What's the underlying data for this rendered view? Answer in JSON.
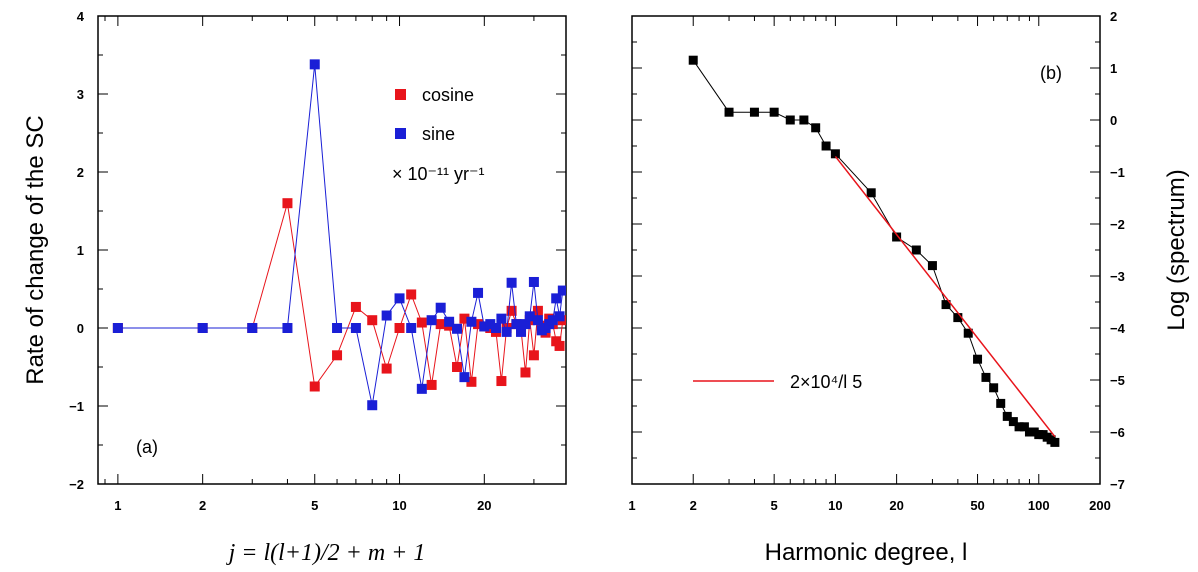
{
  "chart_data": [
    {
      "type": "line",
      "panel_label": "(a)",
      "ylabel": "Rate of change of the SC",
      "xlabel": "j = l(l+1)/2 + m + 1",
      "xscale": "log",
      "xlim": [
        0.85,
        39
      ],
      "ylim": [
        -2,
        4
      ],
      "xticks": [
        1,
        2,
        5,
        10,
        20
      ],
      "yticks": [
        -2,
        -1,
        0,
        1,
        2,
        3,
        4
      ],
      "xtick_labels": [
        "1",
        "2",
        "5",
        "10",
        "20"
      ],
      "ytick_labels": [
        "−2",
        "−1",
        "0",
        "1",
        "2",
        "3",
        "4"
      ],
      "legend": {
        "placement": "top-right",
        "unit_text": "× 10⁻¹¹ yr⁻¹"
      },
      "series": [
        {
          "name": "cosine",
          "color": "#e8141b",
          "x": [
            1,
            2,
            3,
            4,
            5,
            6,
            7,
            8,
            9,
            10,
            11,
            12,
            13,
            14,
            15,
            16,
            17,
            18,
            19,
            20,
            21,
            22,
            23,
            24,
            25,
            26,
            27,
            28,
            29,
            30,
            31,
            32,
            33,
            34,
            35,
            36,
            37,
            38
          ],
          "y": [
            0,
            0,
            0,
            1.6,
            -0.75,
            -0.35,
            0.27,
            0.1,
            -0.52,
            0.0,
            0.43,
            0.07,
            -0.73,
            0.05,
            0.03,
            -0.5,
            0.12,
            -0.69,
            0.05,
            0.02,
            0.0,
            -0.05,
            -0.68,
            0.0,
            0.22,
            0.05,
            -0.02,
            -0.57,
            0.1,
            -0.35,
            0.22,
            0.03,
            -0.06,
            0.12,
            0.05,
            -0.17,
            -0.23,
            0.1
          ]
        },
        {
          "name": "sine",
          "color": "#1a1fd6",
          "x": [
            1,
            2,
            3,
            4,
            5,
            6,
            7,
            8,
            9,
            10,
            11,
            12,
            13,
            14,
            15,
            16,
            17,
            18,
            19,
            20,
            21,
            22,
            23,
            24,
            25,
            26,
            27,
            28,
            29,
            30,
            31,
            32,
            33,
            34,
            35,
            36,
            37,
            38
          ],
          "y": [
            0,
            0,
            0,
            0,
            3.38,
            0,
            0,
            -0.99,
            0.16,
            0.38,
            0,
            -0.78,
            0.1,
            0.26,
            0.08,
            -0.01,
            -0.63,
            0.08,
            0.45,
            0.02,
            0.05,
            0.0,
            0.12,
            -0.05,
            0.58,
            0.05,
            -0.05,
            0.05,
            0.15,
            0.59,
            0.1,
            -0.03,
            0.0,
            0.05,
            0.1,
            0.38,
            0.15,
            0.48
          ]
        }
      ]
    },
    {
      "type": "line",
      "panel_label": "(b)",
      "ylabel": "Log (spectrum)",
      "xlabel": "Harmonic degree, l",
      "xscale": "log",
      "xlim": [
        1,
        200
      ],
      "ylim": [
        -7,
        2
      ],
      "xticks": [
        1,
        2,
        5,
        10,
        20,
        50,
        100,
        200
      ],
      "yticks": [
        -7,
        -6,
        -5,
        -4,
        -3,
        -2,
        -1,
        0,
        1,
        2
      ],
      "xtick_labels": [
        "1",
        "2",
        "5",
        "10",
        "20",
        "50",
        "100",
        "200"
      ],
      "ytick_labels": [
        "−7",
        "−6",
        "−5",
        "−4",
        "−3",
        "−2",
        "−1",
        "0",
        "1",
        "2"
      ],
      "legend": {
        "placement": "bottom-left",
        "fit_label": "2×10⁴/l 5"
      },
      "series": [
        {
          "name": "",
          "color": "#000000",
          "x": [
            2,
            3,
            4,
            5,
            6,
            7,
            8,
            9,
            10,
            15,
            20,
            25,
            30,
            35,
            40,
            45,
            50,
            55,
            60,
            65,
            70,
            75,
            80,
            85,
            90,
            95,
            100,
            105,
            110,
            115,
            120
          ],
          "y": [
            1.15,
            0.15,
            0.15,
            0.15,
            0.0,
            0.0,
            -0.15,
            -0.5,
            -0.65,
            -1.4,
            -2.25,
            -2.5,
            -2.8,
            -3.55,
            -3.8,
            -4.1,
            -4.6,
            -4.95,
            -5.15,
            -5.45,
            -5.7,
            -5.8,
            -5.9,
            -5.9,
            -6.0,
            -6.0,
            -6.05,
            -6.05,
            -6.1,
            -6.15,
            -6.2
          ]
        },
        {
          "name": "2×10⁴/l 5",
          "color": "#e8141b",
          "x": [
            10,
            120
          ],
          "y": [
            -0.7,
            -6.09
          ]
        }
      ]
    }
  ]
}
